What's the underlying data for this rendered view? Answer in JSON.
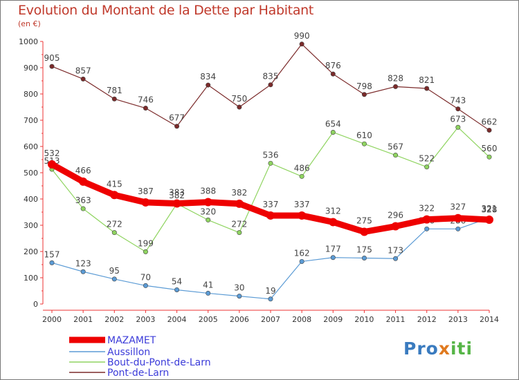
{
  "title": "Evolution du Montant de la Dette par Habitant",
  "unit": "(en €)",
  "logo": {
    "parts": [
      "Pro",
      "x",
      "iti"
    ]
  },
  "chart_data": {
    "type": "line",
    "title": "Evolution du Montant de la Dette par Habitant",
    "ylabel": "(en €)",
    "xlabel": "",
    "x": [
      "2000",
      "2001",
      "2002",
      "2003",
      "2004",
      "2005",
      "2006",
      "2007",
      "2008",
      "2009",
      "2010",
      "2011",
      "2012",
      "2013",
      "2014"
    ],
    "ylim": [
      0,
      1000
    ],
    "yticks": [
      "0",
      "100",
      "200",
      "300",
      "400",
      "500",
      "600",
      "700",
      "800",
      "900",
      "1000"
    ],
    "grid": false,
    "legend_position": "bottom-left",
    "series": [
      {
        "name": "MAZAMET",
        "color": "#ee0000",
        "values": [
          532,
          466,
          415,
          387,
          383,
          388,
          382,
          337,
          337,
          312,
          275,
          296,
          322,
          327,
          321
        ],
        "labels": [
          "532",
          "466",
          "415",
          "387",
          "383",
          "388",
          "382",
          "337",
          "337",
          "312",
          "275",
          "296",
          "322",
          "327",
          "321"
        ]
      },
      {
        "name": "Aussillon",
        "color": "#5b9bd5",
        "values": [
          157,
          123,
          95,
          70,
          54,
          41,
          30,
          19,
          162,
          177,
          175,
          173,
          286,
          286,
          328
        ],
        "labels": [
          "157",
          "123",
          "95",
          "70",
          "54",
          "41",
          "30",
          "19",
          "162",
          "177",
          "175",
          "173",
          "286",
          "286",
          "328"
        ]
      },
      {
        "name": "Bout-du-Pont-de-Larn",
        "color": "#8fd460",
        "values": [
          513,
          363,
          272,
          199,
          382,
          320,
          272,
          536,
          486,
          654,
          610,
          567,
          522,
          673,
          560
        ],
        "labels": [
          "513",
          "363",
          "272",
          "199",
          "382",
          "320",
          "272",
          "536",
          "486",
          "654",
          "610",
          "567",
          "522",
          "673",
          "560"
        ]
      },
      {
        "name": "Pont-de-Larn",
        "color": "#7b2a2a",
        "values": [
          905,
          857,
          781,
          746,
          677,
          834,
          750,
          835,
          990,
          876,
          798,
          828,
          821,
          743,
          662
        ],
        "labels": [
          "905",
          "857",
          "781",
          "746",
          "677",
          "834",
          "750",
          "835",
          "990",
          "876",
          "798",
          "828",
          "821",
          "743",
          "662"
        ]
      }
    ]
  }
}
